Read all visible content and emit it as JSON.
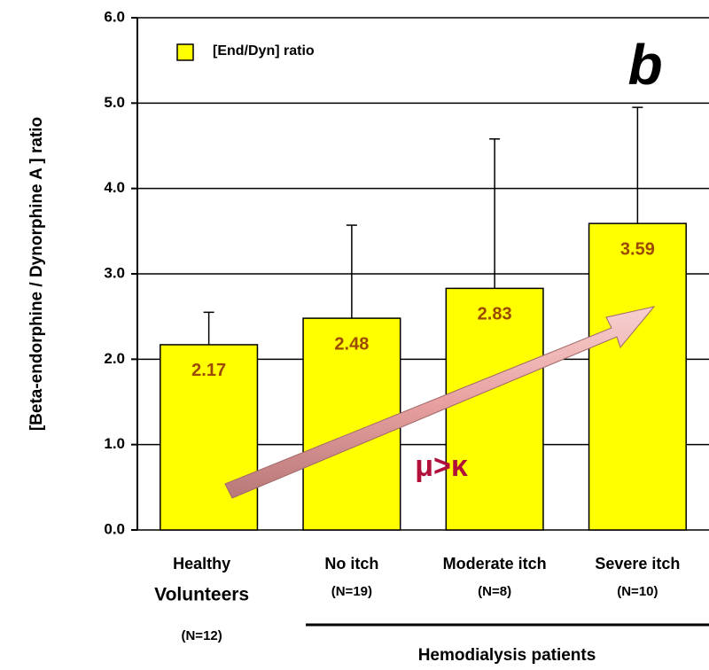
{
  "chart_data": {
    "type": "bar",
    "y_label": "[Beta-endorphine / Dynorphine A ] ratio",
    "categories": [
      [
        "Healthy",
        "Volunteers",
        "(N=12)"
      ],
      [
        "No itch",
        "(N=19)"
      ],
      [
        "Moderate itch",
        "(N=8)"
      ],
      [
        "Severe itch",
        "(N=10)"
      ]
    ],
    "series": [
      {
        "name": "[End/Dyn] ratio",
        "color": "#ffff00",
        "values": [
          2.17,
          2.48,
          2.83,
          3.59
        ],
        "errors": [
          0.38,
          1.09,
          1.75,
          1.36
        ]
      }
    ],
    "ylim": [
      0,
      6
    ],
    "yticks": [
      {
        "value": 0,
        "label": "0.0"
      },
      {
        "value": 1,
        "label": "1.0"
      },
      {
        "value": 2,
        "label": "2.0"
      },
      {
        "value": 3,
        "label": "3.0"
      },
      {
        "value": 4,
        "label": "4.0"
      },
      {
        "value": 5,
        "label": "5.0"
      },
      {
        "value": 6,
        "label": "6.0"
      }
    ],
    "grid": true,
    "legend": "upper left",
    "annotations": {
      "panel": "b",
      "arrow_text": "μ>κ",
      "group": "Hemodialysis patients"
    }
  }
}
